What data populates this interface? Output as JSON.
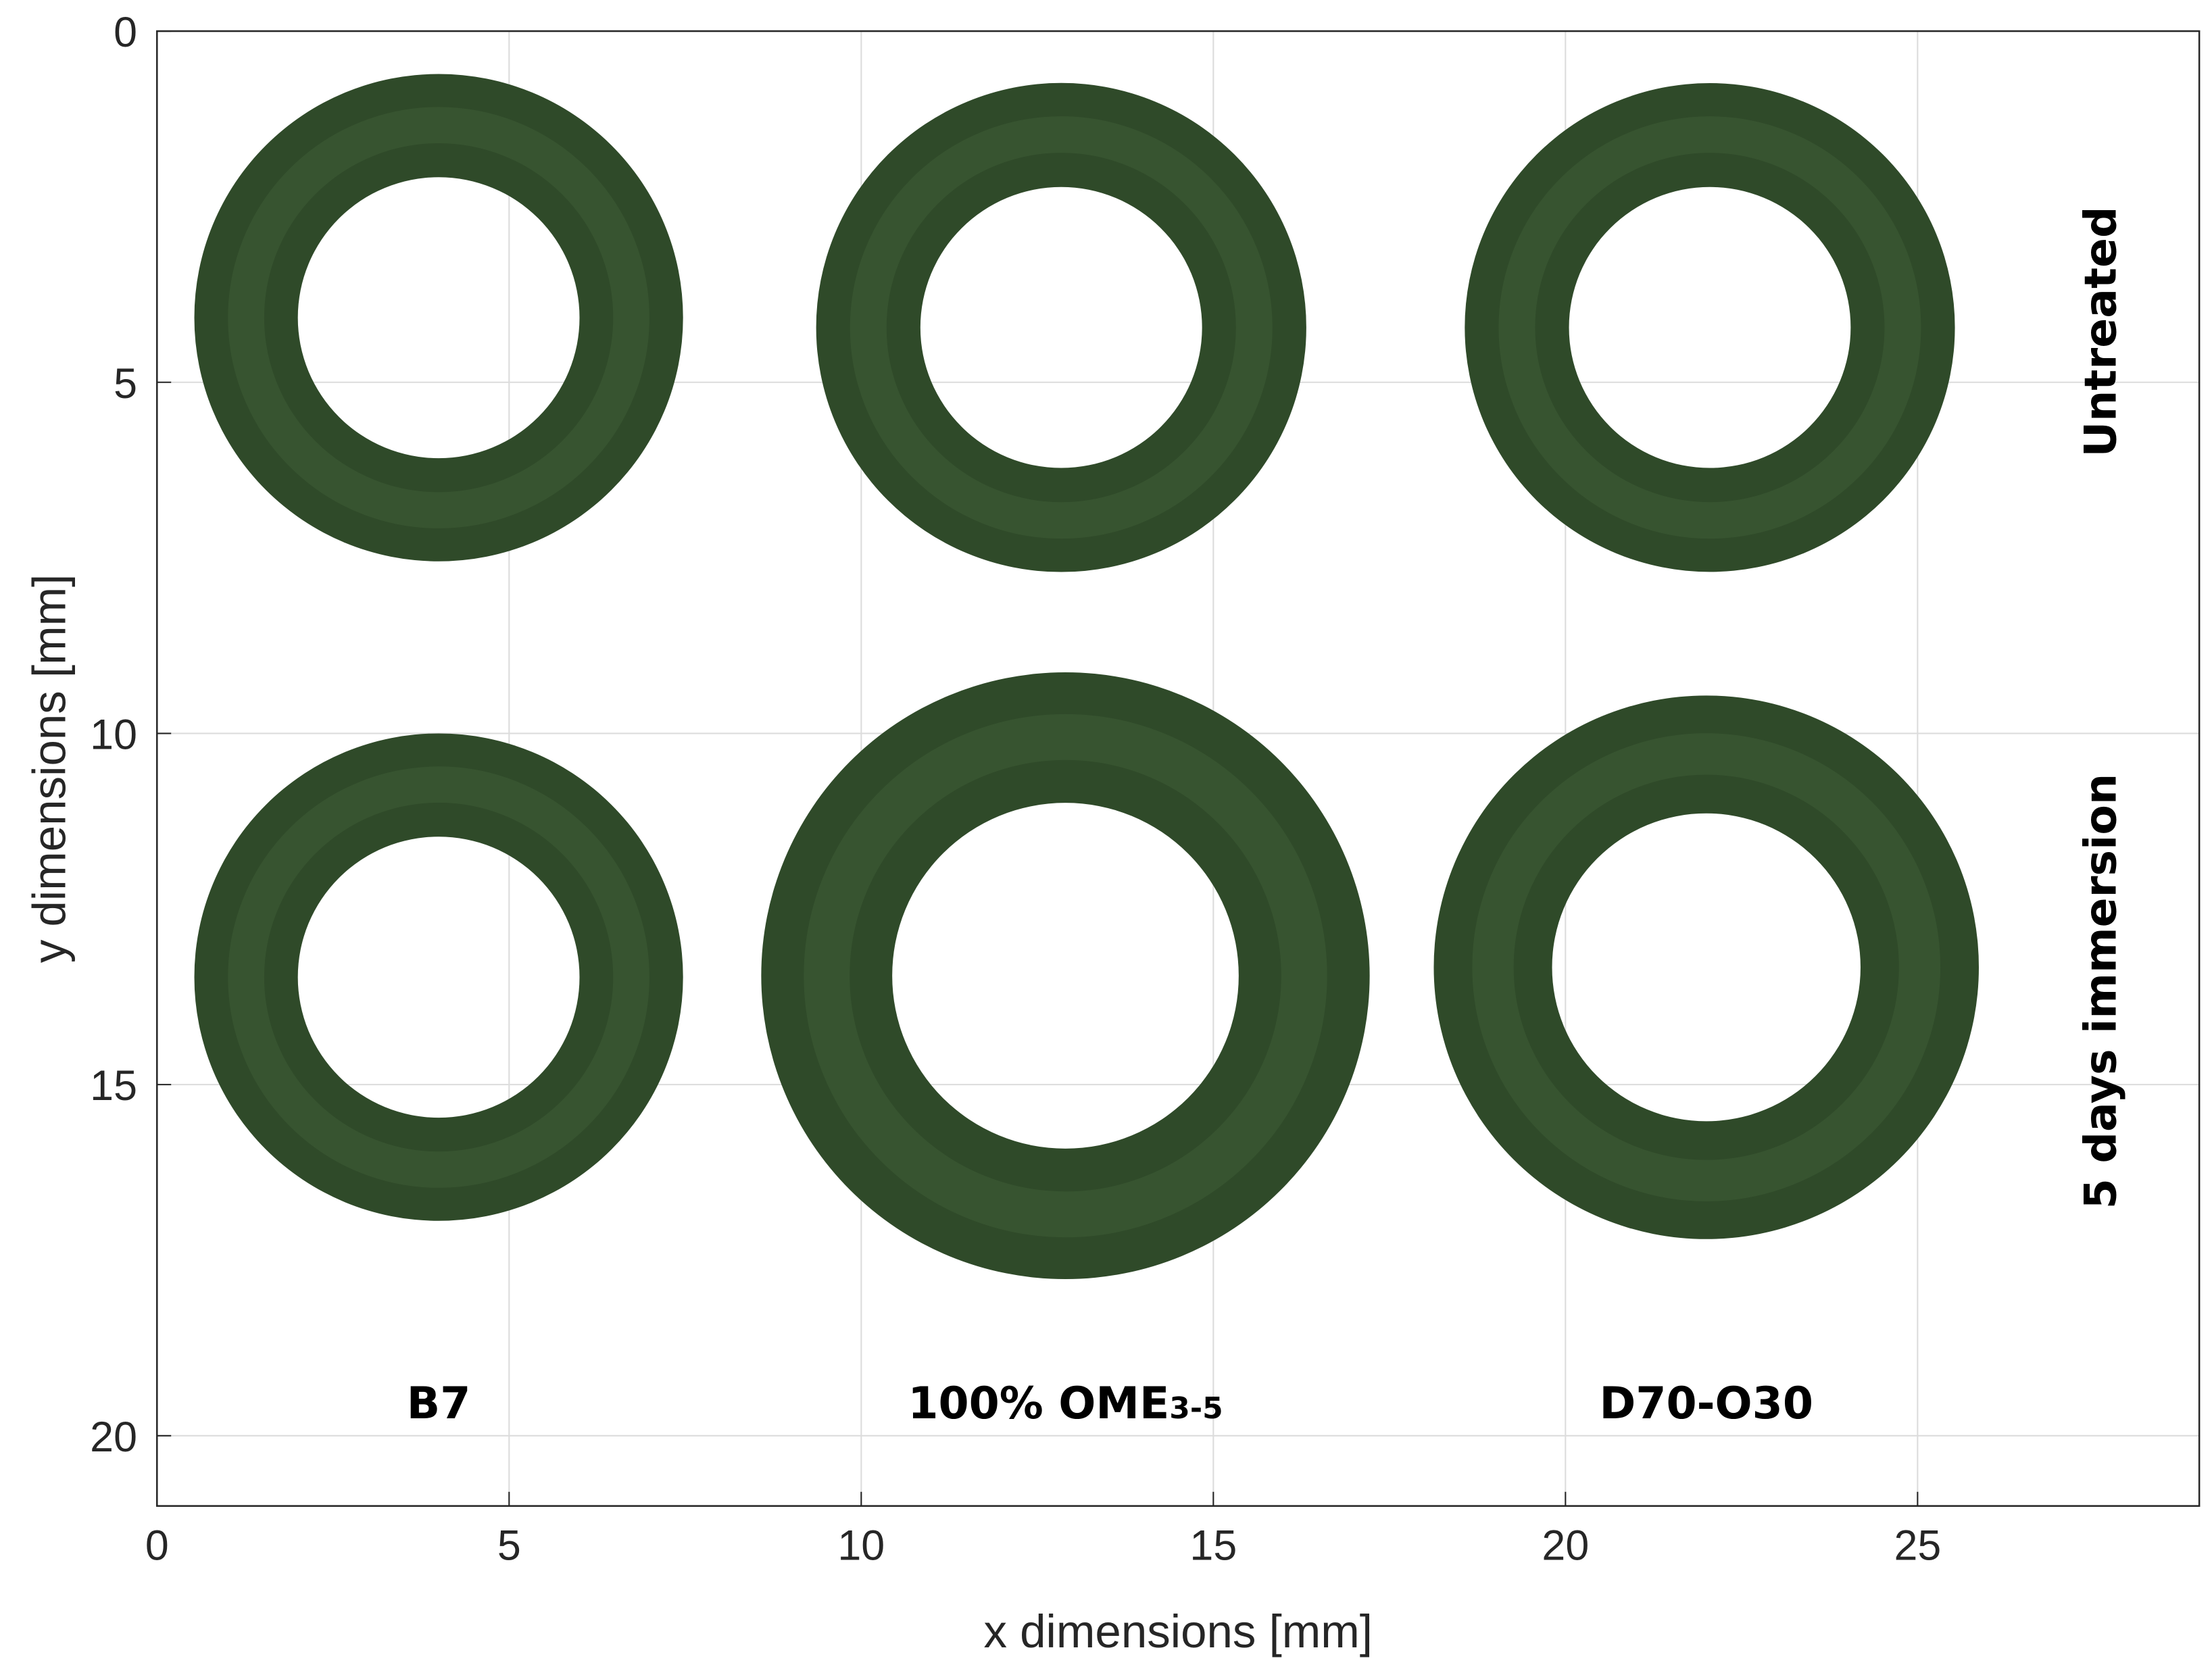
{
  "chart_data": {
    "type": "rings",
    "xlabel": "x dimensions [mm]",
    "ylabel": "y dimensions [mm]",
    "xlim": [
      0,
      29
    ],
    "ylim": [
      0,
      21
    ],
    "y_reversed": true,
    "xticks": [
      0,
      5,
      10,
      15,
      20,
      25
    ],
    "yticks": [
      0,
      5,
      10,
      15,
      20
    ],
    "grid": true,
    "color": "#2f4a29",
    "rings": [
      {
        "x": 4.0,
        "y": 4.08,
        "outer_radius": 3.47,
        "inner_radius": 2.0
      },
      {
        "x": 12.84,
        "y": 4.22,
        "outer_radius": 3.48,
        "inner_radius": 2.0
      },
      {
        "x": 22.05,
        "y": 4.22,
        "outer_radius": 3.48,
        "inner_radius": 2.0
      },
      {
        "x": 4.0,
        "y": 13.47,
        "outer_radius": 3.47,
        "inner_radius": 2.0
      },
      {
        "x": 12.9,
        "y": 13.45,
        "outer_radius": 4.32,
        "inner_radius": 2.46
      },
      {
        "x": 22.0,
        "y": 13.33,
        "outer_radius": 3.87,
        "inner_radius": 2.19
      }
    ],
    "row_labels": [
      "Untreated",
      "5 days immersion"
    ],
    "column_labels": [
      {
        "text": "B7"
      },
      {
        "text": "100% OME",
        "subscript": "3-5"
      },
      {
        "text": "D70-O30"
      }
    ]
  }
}
